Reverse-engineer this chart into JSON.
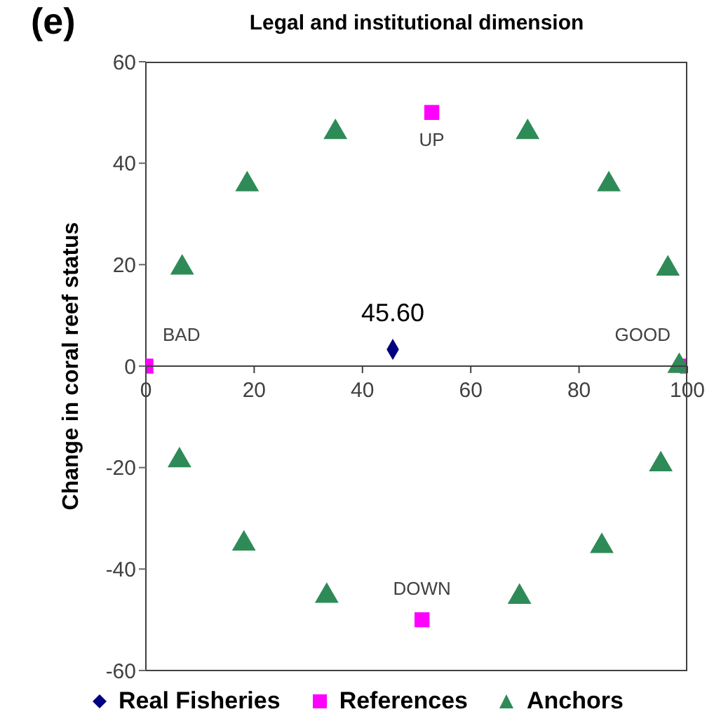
{
  "chart_data": {
    "type": "scatter",
    "title": "Legal and institutional dimension",
    "ylabel": "Change in coral reef status",
    "annotations": [
      "(e)",
      {
        "text": "BAD",
        "x": 0,
        "y": 0
      },
      {
        "text": "GOOD",
        "x": 100,
        "y": 0
      },
      {
        "text": "UP",
        "x": 52.8,
        "y": 50
      },
      {
        "text": "DOWN",
        "x": 51,
        "y": -50
      },
      {
        "text": "45.60",
        "x": 45.6,
        "y": 3.3
      }
    ],
    "series": [
      {
        "name": "Real Fisheries",
        "color": "#000080",
        "marker": "diamond",
        "x": [
          45.6
        ],
        "values": [
          3.3
        ]
      },
      {
        "name": "References",
        "color": "#ff00ff",
        "marker": "square",
        "x": [
          0,
          100,
          52.8,
          51
        ],
        "values": [
          0,
          0,
          50,
          -50
        ]
      },
      {
        "name": "Anchors",
        "color": "#2e8b57",
        "marker": "triangle",
        "x": [
          6.7,
          18.7,
          35,
          70.5,
          85.5,
          96.4,
          98.5,
          6.2,
          18.1,
          33.4,
          69,
          84.2,
          95.1
        ],
        "values": [
          19.4,
          35.8,
          46.1,
          46.1,
          35.8,
          19.2,
          0,
          -18.6,
          -35,
          -45.3,
          -45.5,
          -35.5,
          -19.4
        ]
      }
    ],
    "xlim": [
      0,
      100
    ],
    "xticks": [
      0,
      20,
      40,
      60,
      80,
      100
    ],
    "ylim": [
      -60,
      60
    ],
    "yticks": [
      -60,
      -40,
      -20,
      0,
      20,
      40,
      60
    ],
    "grid": false,
    "legend": "bottom"
  }
}
